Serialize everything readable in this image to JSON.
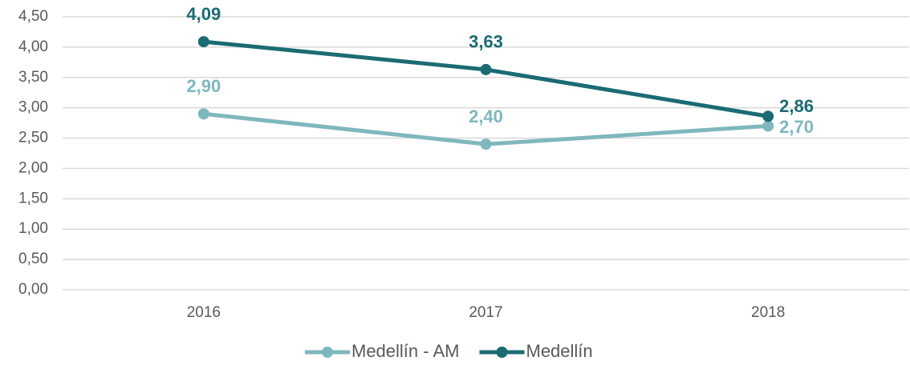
{
  "chart_data": {
    "type": "line",
    "categories": [
      "2016",
      "2017",
      "2018"
    ],
    "series": [
      {
        "name": "Medellín - AM",
        "color": "#7fb7be",
        "values": [
          2.9,
          2.4,
          2.7
        ],
        "value_labels": [
          "2,90",
          "2,40",
          "2,70"
        ]
      },
      {
        "name": "Medellín",
        "color": "#1b6b73",
        "values": [
          4.09,
          3.63,
          2.86
        ],
        "value_labels": [
          "4,09",
          "3,63",
          "2,86"
        ]
      }
    ],
    "ylim": [
      0,
      4.5
    ],
    "yticks": [
      {
        "value": 0,
        "label": "0,00"
      },
      {
        "value": 0.5,
        "label": "0,50"
      },
      {
        "value": 1,
        "label": "1,00"
      },
      {
        "value": 1.5,
        "label": "1,50"
      },
      {
        "value": 2,
        "label": "2,00"
      },
      {
        "value": 2.5,
        "label": "2,50"
      },
      {
        "value": 3,
        "label": "3,00"
      },
      {
        "value": 3.5,
        "label": "3,50"
      },
      {
        "value": 4,
        "label": "4,00"
      },
      {
        "value": 4.5,
        "label": "4,50"
      }
    ],
    "grid": true,
    "legend": "bottom"
  }
}
